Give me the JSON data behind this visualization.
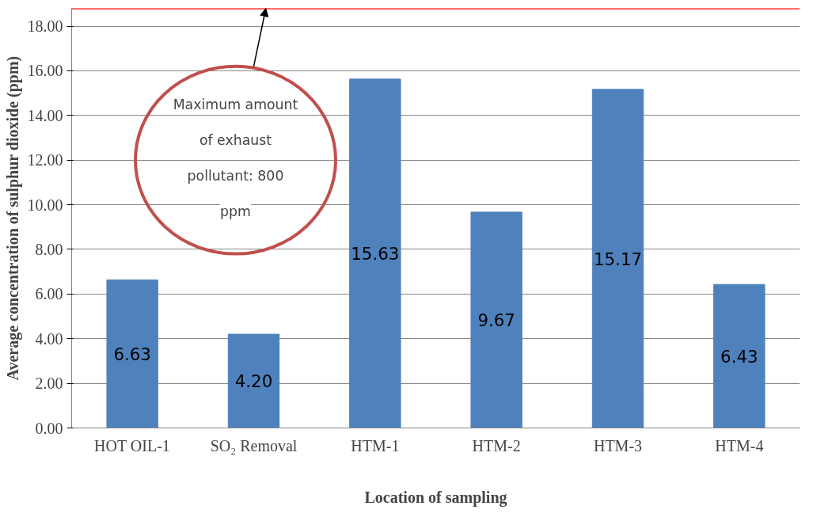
{
  "chart_data": {
    "type": "bar",
    "xlabel": "Location of sampling",
    "ylabel": "Average concentration of sulphur dioxide (ppm)",
    "categories": [
      "HOT OIL-1",
      "SO₂ Removal",
      "HTM-1",
      "HTM-2",
      "HTM-3",
      "HTM-4"
    ],
    "values": [
      6.63,
      4.2,
      15.63,
      9.67,
      15.17,
      6.43
    ],
    "color": "#4f81bd",
    "value_labels": [
      "6.63",
      "4.20",
      "15.63",
      "9.67",
      "15.17",
      "6.43"
    ],
    "annotations": [
      "Maximum amount of exhaust pollutant: 800 ppm"
    ],
    "ylim": [
      0,
      18.8
    ],
    "yticks": [
      {
        "value": 0,
        "label": "0.00"
      },
      {
        "value": 2,
        "label": "2.00"
      },
      {
        "value": 4,
        "label": "4.00"
      },
      {
        "value": 6,
        "label": "6.00"
      },
      {
        "value": 8,
        "label": "8.00"
      },
      {
        "value": 10,
        "label": "10.00"
      },
      {
        "value": 12,
        "label": "12.00"
      },
      {
        "value": 14,
        "label": "14.00"
      },
      {
        "value": 16,
        "label": "16.00"
      },
      {
        "value": 18,
        "label": "18.00"
      }
    ],
    "grid": "y",
    "ref_lines": [
      {
        "axis": "y",
        "value": 18.8,
        "color": "#ff0000"
      }
    ]
  }
}
